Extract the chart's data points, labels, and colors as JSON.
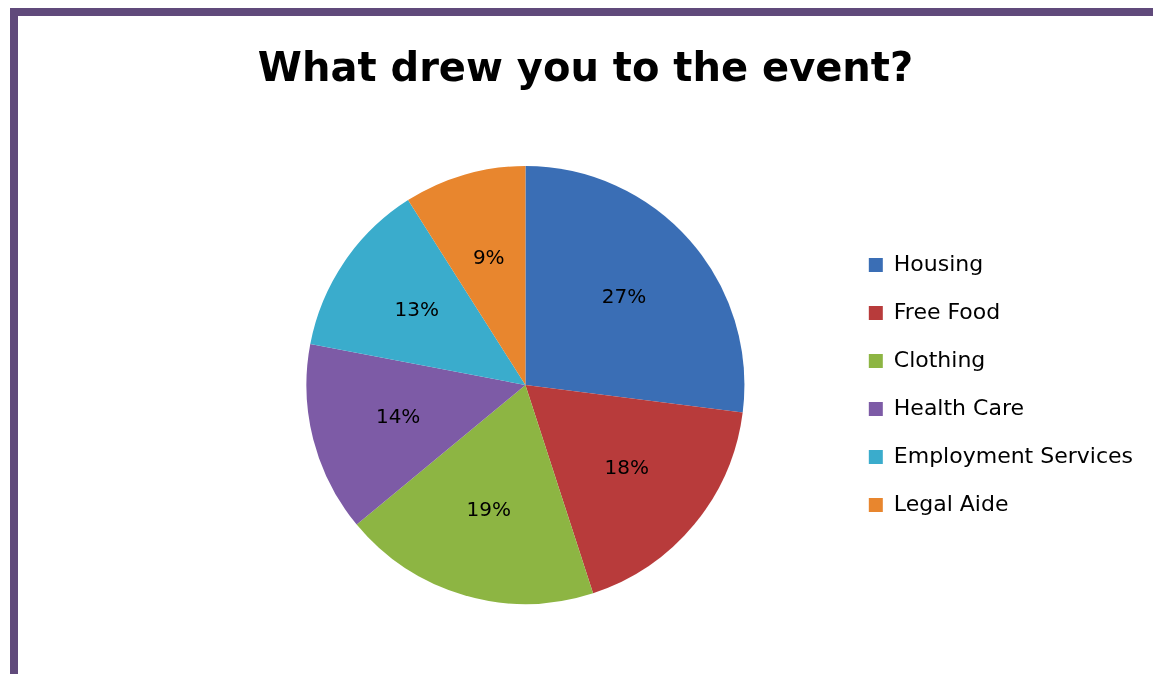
{
  "chart_data": {
    "type": "pie",
    "title": "What drew you to the event?",
    "categories": [
      "Housing",
      "Free Food",
      "Clothing",
      "Health Care",
      "Employment Services",
      "Legal Aide"
    ],
    "values": [
      27,
      18,
      19,
      14,
      13,
      9
    ],
    "value_labels": [
      "27%",
      "18%",
      "19%",
      "14%",
      "13%",
      "9%"
    ],
    "colors": [
      "#3a6eb5",
      "#b83b3b",
      "#8db543",
      "#7d5ba6",
      "#3aaccc",
      "#e8862e"
    ],
    "legend": "right"
  }
}
